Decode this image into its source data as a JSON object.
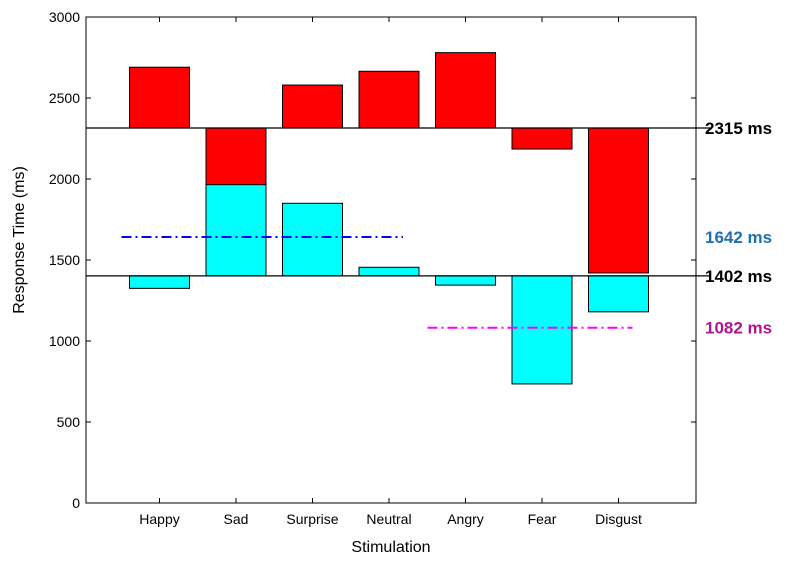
{
  "chart_data": {
    "type": "bar",
    "title": "",
    "xlabel": "Stimulation",
    "ylabel": "Response Time (ms)",
    "ylim": [
      0,
      3000
    ],
    "yticks": [
      0,
      500,
      1000,
      1500,
      2000,
      2500,
      3000
    ],
    "categories": [
      "Happy",
      "Sad",
      "Surprise",
      "Neutral",
      "Angry",
      "Fear",
      "Disgust"
    ],
    "grid": false,
    "legend": "none",
    "series": [
      {
        "color": "#ff0000",
        "baseline": 2315,
        "values": [
          2690,
          1910,
          2580,
          2665,
          2780,
          2185,
          1420
        ]
      },
      {
        "color": "#00ffff",
        "baseline": 1402,
        "values": [
          1325,
          1965,
          1850,
          1455,
          1345,
          735,
          1180
        ]
      }
    ],
    "reference_lines": [
      {
        "value": 2315,
        "label": "2315 ms",
        "style": "solid",
        "color": "#000000",
        "label_color": "#000000",
        "span": "full"
      },
      {
        "value": 1402,
        "label": "1402 ms",
        "style": "solid",
        "color": "#000000",
        "label_color": "#000000",
        "span": "full"
      },
      {
        "value": 1642,
        "label": "1642 ms",
        "style": "dash-dot",
        "color": "#0000ff",
        "label_color": "#1f6fb5",
        "span": "Happy-Neutral"
      },
      {
        "value": 1082,
        "label": "1082 ms",
        "style": "dash-dot",
        "color": "#ff00ff",
        "label_color": "#b0158f",
        "span": "Angry-Disgust"
      }
    ]
  }
}
